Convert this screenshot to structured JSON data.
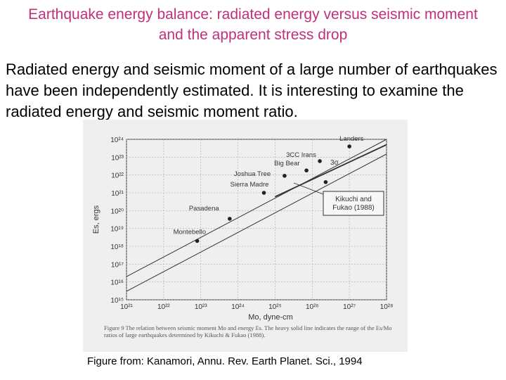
{
  "slide": {
    "title": "Earthquake energy balance: radiated energy versus seismic moment and the apparent stress drop",
    "body": "Radiated energy and seismic moment of a large number of earthquakes have been independently estimated. It is interesting to examine the radiated energy and seismic moment ratio.",
    "credit": "Figure from: Kanamori, Annu. Rev. Earth Planet. Sci., 1994"
  },
  "figure": {
    "caption": "Figure 9   The relation between seismic moment Mo and energy Es. The heavy solid line indicates the range of the Es/Mo ratios of large earthquakes determined by Kikuchi & Fukao (1988)."
  },
  "colors": {
    "title": "#c0307a",
    "panel": "#efefef",
    "ink": "#333333"
  },
  "chart_data": {
    "type": "scatter",
    "xscale": "log",
    "yscale": "log",
    "xlabel": "Mo, dyne-cm",
    "ylabel": "Es, ergs",
    "xlim": [
      1e+21,
      1e+28
    ],
    "ylim": [
      1000000000000000.0,
      1e+24
    ],
    "x_ticks": [
      "10²¹",
      "10²²",
      "10²³",
      "10²⁴",
      "10²⁵",
      "10²⁶",
      "10²⁷",
      "10²⁸"
    ],
    "y_ticks": [
      "10¹⁵",
      "10¹⁶",
      "10¹⁷",
      "10¹⁸",
      "10¹⁹",
      "10²⁰",
      "10²¹",
      "10²²",
      "10²³",
      "10²⁴"
    ],
    "points": [
      {
        "label": "Landers",
        "x": 1e+27,
        "y": 4e+23
      },
      {
        "label": "3CC Irans",
        "x": 1.6e+26,
        "y": 6e+22
      },
      {
        "label": "Big Bear",
        "x": 7e+25,
        "y": 1.8e+22
      },
      {
        "label": "Joshua Tree",
        "x": 1.8e+25,
        "y": 9e+21
      },
      {
        "label": "Sierra Madre",
        "x": 5e+24,
        "y": 1e+21
      },
      {
        "label": "Pasadena",
        "x": 6e+23,
        "y": 3.5e+19
      },
      {
        "label": "Montebello",
        "x": 8e+22,
        "y": 2e+18
      },
      {
        "label": "",
        "x": 2.3e+26,
        "y": 4e+21
      }
    ],
    "lines": [
      {
        "label": "3σ",
        "points": [
          [
            1e+21,
            2e+16
          ],
          [
            1e+28,
            1e+24
          ]
        ]
      },
      {
        "label": "",
        "points": [
          [
            1e+21,
            3000000000000000.0
          ],
          [
            1e+28,
            1.5e+23
          ]
        ]
      },
      {
        "label": "Kikuchi and Fukao (1988)",
        "points": [
          [
            1e+25,
            6e+20
          ],
          [
            1e+28,
            5e+23
          ]
        ]
      }
    ],
    "annotations": [
      {
        "text": "Kikuchi and Fukao (1988)"
      },
      {
        "text": "3σ"
      }
    ]
  }
}
